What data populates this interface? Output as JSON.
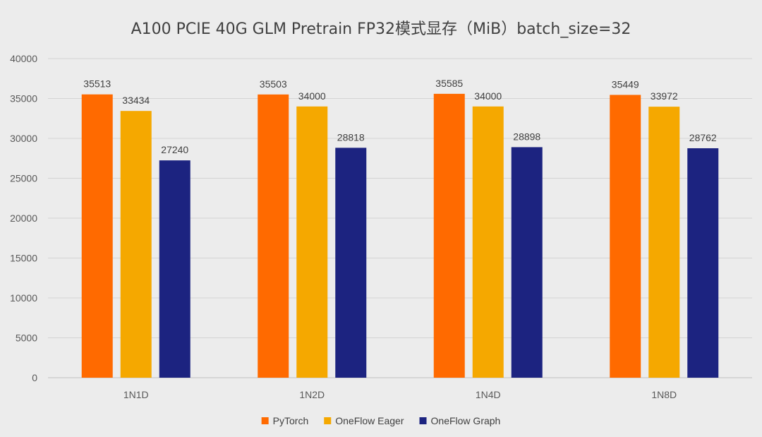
{
  "chart_data": {
    "type": "bar",
    "title": "A100 PCIE 40G GLM Pretrain FP32模式显存（MiB）batch_size=32",
    "xlabel": "",
    "ylabel": "",
    "ylim": [
      0,
      40000
    ],
    "yticks": [
      0,
      5000,
      10000,
      15000,
      20000,
      25000,
      30000,
      35000,
      40000
    ],
    "grid": true,
    "legend_position": "bottom",
    "categories": [
      "1N1D",
      "1N2D",
      "1N4D",
      "1N8D"
    ],
    "series": [
      {
        "name": "PyTorch",
        "color": "#ff6a00",
        "values": [
          35513,
          35503,
          35585,
          35449
        ]
      },
      {
        "name": "OneFlow Eager",
        "color": "#f5a800",
        "values": [
          33434,
          34000,
          34000,
          33972
        ]
      },
      {
        "name": "OneFlow Graph",
        "color": "#1c2380",
        "values": [
          27240,
          28818,
          28898,
          28762
        ]
      }
    ]
  }
}
